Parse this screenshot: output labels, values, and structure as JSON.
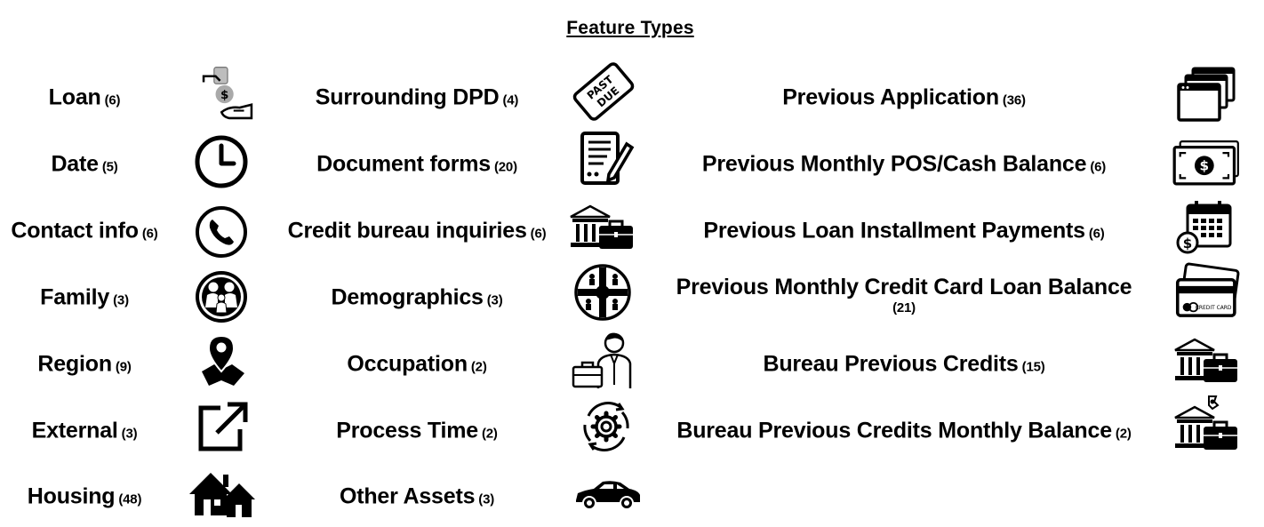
{
  "title": "Feature Types",
  "col1": [
    {
      "label": "Loan",
      "count": "(6)",
      "icon": "loan-hand-money-icon"
    },
    {
      "label": "Date",
      "count": "(5)",
      "icon": "clock-icon"
    },
    {
      "label": "Contact info",
      "count": "(6)",
      "icon": "phone-icon"
    },
    {
      "label": "Family",
      "count": "(3)",
      "icon": "family-icon"
    },
    {
      "label": "Region",
      "count": "(9)",
      "icon": "map-pin-icon"
    },
    {
      "label": "External",
      "count": "(3)",
      "icon": "external-link-icon"
    },
    {
      "label": "Housing",
      "count": "(48)",
      "icon": "houses-icon"
    }
  ],
  "col2": [
    {
      "label": "Surrounding DPD",
      "count": "(4)",
      "icon": "past-due-stamp-icon"
    },
    {
      "label": "Document forms",
      "count": "(20)",
      "icon": "document-pen-icon"
    },
    {
      "label": "Credit bureau inquiries",
      "count": "(6)",
      "icon": "bank-briefcase-icon"
    },
    {
      "label": "Demographics",
      "count": "(3)",
      "icon": "people-network-icon"
    },
    {
      "label": "Occupation",
      "count": "(2)",
      "icon": "businessman-icon"
    },
    {
      "label": "Process Time",
      "count": "(2)",
      "icon": "gear-cycle-icon"
    },
    {
      "label": "Other Assets",
      "count": "(3)",
      "icon": "car-icon"
    }
  ],
  "col3": [
    {
      "label": "Previous Application",
      "count": "(36)",
      "icon": "stacked-windows-icon"
    },
    {
      "label": "Previous Monthly POS/Cash Balance",
      "count": "(6)",
      "icon": "cash-bill-icon"
    },
    {
      "label": "Previous Loan Installment Payments",
      "count": "(6)",
      "icon": "calendar-dollar-icon"
    },
    {
      "label": "Previous Monthly Credit Card Loan Balance",
      "count": "(21)",
      "icon": "credit-cards-icon"
    },
    {
      "label": "Bureau Previous Credits",
      "count": "(15)",
      "icon": "bank-briefcase-icon"
    },
    {
      "label": "Bureau Previous Credits Monthly Balance",
      "count": "(2)",
      "icon": "bank-briefcase-money-icon"
    }
  ],
  "card_text": "CREDIT CARD",
  "stamp_text": [
    "PAST",
    "DUE"
  ]
}
